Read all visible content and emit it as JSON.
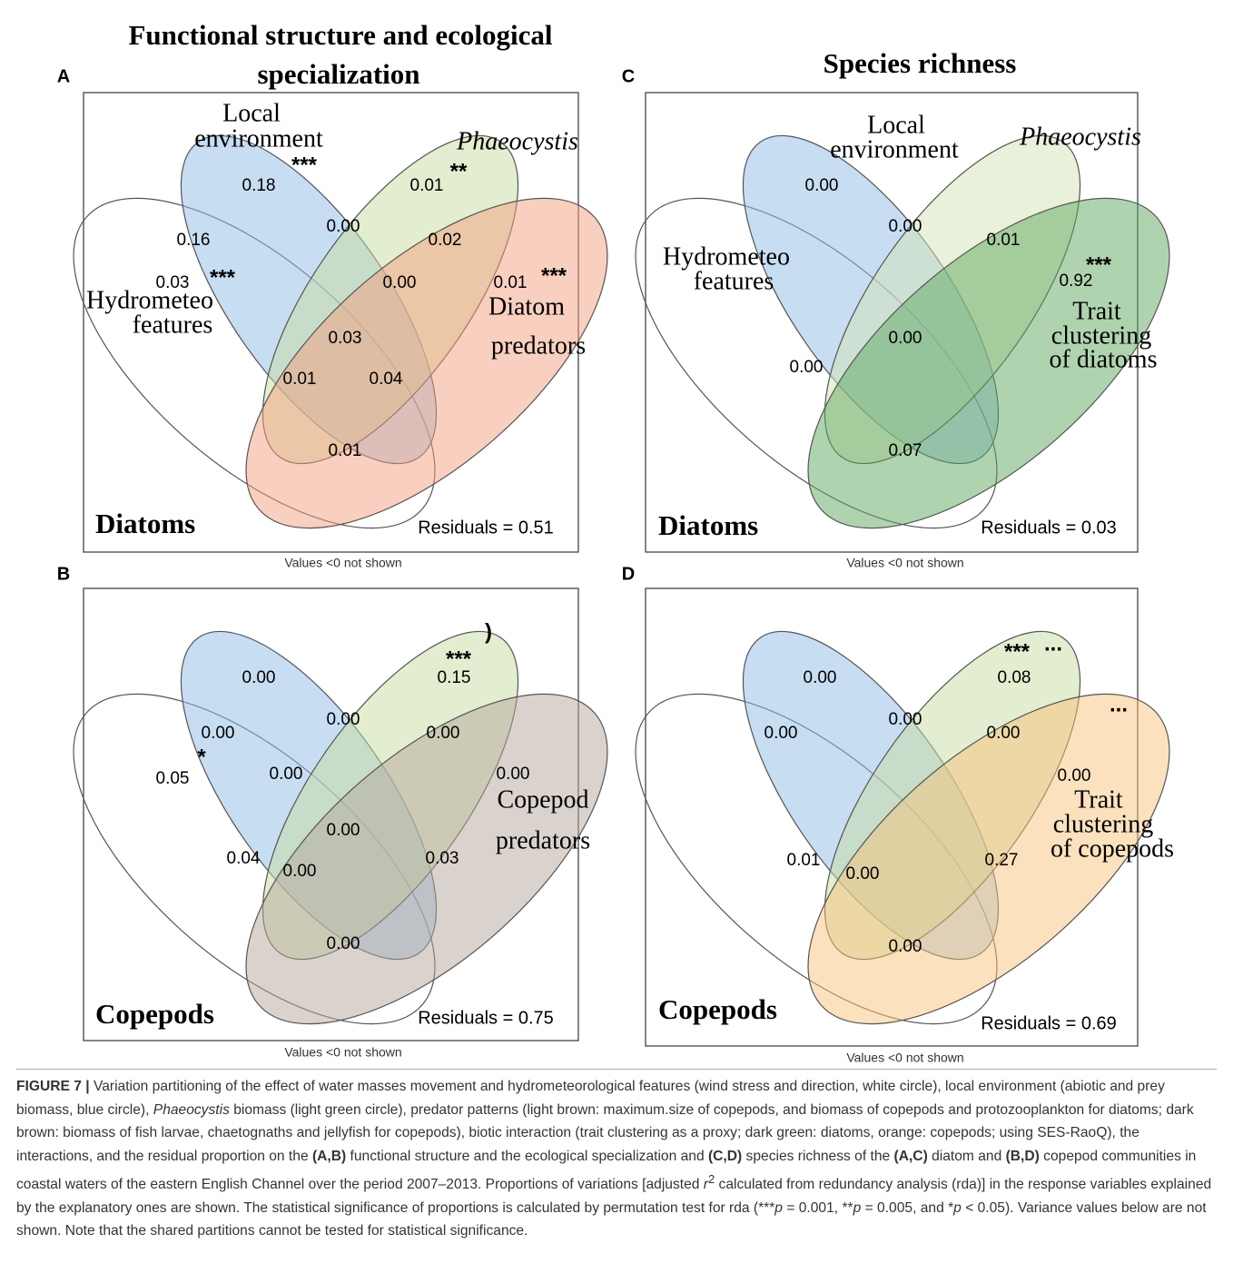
{
  "panels": [
    {
      "letter": "A",
      "title": [
        "Functional  structure  and ecological",
        "specialization"
      ],
      "group": "Diatoms",
      "residuals": "Residuals = 0.51",
      "note": "Values <0 not shown",
      "set_labels": [
        "Local",
        "environment",
        "Phaeocystis",
        "Hydrometeo",
        "features",
        "Diatom",
        "predators"
      ],
      "values": [
        "0.18",
        "0.00",
        "0.01",
        "0.16",
        "0.02",
        "0.03",
        "0.00",
        "0.01",
        "0.03",
        "0.01",
        "0.04",
        "0.01"
      ],
      "stars": [
        "***",
        "**",
        "***",
        "***"
      ],
      "colors": [
        "none",
        "#8fbbe6",
        "#c7dba0",
        "#f4a07f"
      ]
    },
    {
      "letter": "C",
      "title": [
        "Species richness"
      ],
      "group": "Diatoms",
      "residuals": "Residuals = 0.03",
      "note": "Values <0 not shown",
      "set_labels": [
        "Local",
        "environment",
        "Phaeocystis",
        "Hydrometeo",
        "features",
        "Trait",
        "clustering",
        "of diatoms"
      ],
      "values": [
        "0.00",
        "0.00",
        "0.01",
        "0.92",
        "0.00",
        "0.00",
        "0.07"
      ],
      "stars": [
        "***"
      ],
      "colors": [
        "none",
        "#8fbbe6",
        "#d3e3b5",
        "#5fa85f"
      ]
    },
    {
      "letter": "B",
      "group": "Copepods",
      "residuals": "Residuals = 0.75",
      "note": "Values <0 not shown",
      "set_labels": [
        "Copepod",
        "predators"
      ],
      "values": [
        "0.00",
        "0.15",
        "0.00",
        "0.00",
        "0.00",
        "0.05",
        "0.00",
        "0.00",
        "0.00",
        "0.04",
        "0.00",
        "0.03",
        "0.00"
      ],
      "stars": [
        "***",
        "*",
        ")"
      ],
      "colors": [
        "none",
        "#8fbbe6",
        "#c7dba0",
        "#b5a89b"
      ]
    },
    {
      "letter": "D",
      "group": "Copepods",
      "residuals": "Residuals = 0.69",
      "note": "Values <0 not shown",
      "set_labels": [
        "Trait",
        "clustering",
        "of copepods"
      ],
      "values": [
        "0.00",
        "0.08",
        "0.00",
        "0.00",
        "0.00",
        "0.00",
        "0.01",
        "0.00",
        "0.27",
        "0.00"
      ],
      "stars": [
        "***",
        "...",
        "..."
      ],
      "colors": [
        "none",
        "#8fbbe6",
        "#c7dba0",
        "#f8c37c"
      ]
    }
  ],
  "caption": {
    "parts": [
      "FIGURE 7 |",
      " Variation partitioning of the effect of water masses movement and hydrometeorological features (wind stress and direction, white circle), local environment (abiotic and prey biomass, blue circle), ",
      "Phaeocystis",
      " biomass (light green circle), predator patterns (light brown: maximum.size of copepods, and biomass of copepods and protozooplankton for diatoms; dark brown: biomass of fish larvae, chaetognaths and jellyfish for copepods), biotic interaction (trait clustering as a proxy; dark green: diatoms, orange: copepods; using SES-RaoQ), the interactions, and the residual proportion on the ",
      "(A,B)",
      " functional structure and the ecological specialization and ",
      "(C,D)",
      " species richness of the ",
      "(A,C)",
      " diatom and ",
      "(B,D)",
      " copepod communities in coastal waters of the eastern English Channel over the period 2007–2013. Proportions of variations [adjusted ",
      "r",
      "2",
      " calculated from redundancy analysis (rda)] in the response variables explained by the explanatory ones are shown. The statistical significance of proportions is calculated by permutation test for rda (***",
      "p",
      " = 0.001, **",
      "p",
      " = 0.005, and *",
      "p",
      " < 0.05). Variance values below are not shown. Note that the shared partitions cannot be tested for statistical significance."
    ]
  }
}
